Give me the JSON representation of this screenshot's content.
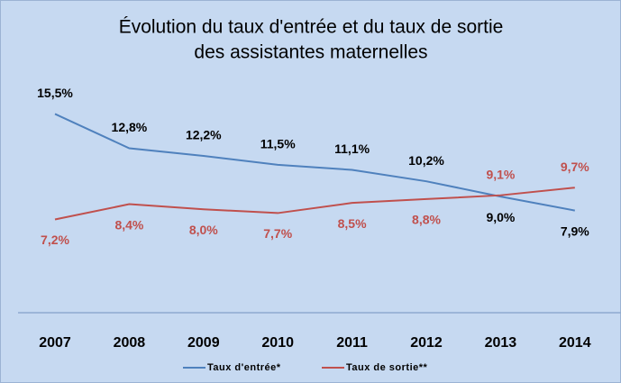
{
  "chart_data": {
    "type": "line",
    "title_lines": [
      "Évolution du taux d'entrée et du taux de sortie",
      "des assistantes maternelles"
    ],
    "categories": [
      "2007",
      "2008",
      "2009",
      "2010",
      "2011",
      "2012",
      "2013",
      "2014"
    ],
    "series": [
      {
        "name": "Taux d'entrée*",
        "color": "#4f81bd",
        "values": [
          15.5,
          12.8,
          12.2,
          11.5,
          11.1,
          10.2,
          9.0,
          7.9
        ],
        "value_labels": [
          "15,5%",
          "12,8%",
          "12,2%",
          "11,5%",
          "11,1%",
          "10,2%",
          "9,0%",
          "7,9%"
        ]
      },
      {
        "name": "Taux de sortie**",
        "color": "#c0504d",
        "values": [
          7.2,
          8.4,
          8.0,
          7.7,
          8.5,
          8.8,
          9.1,
          9.7
        ],
        "value_labels": [
          "7,2%",
          "8,4%",
          "8,0%",
          "7,7%",
          "8,5%",
          "8,8%",
          "9,1%",
          "9,7%"
        ]
      }
    ]
  }
}
